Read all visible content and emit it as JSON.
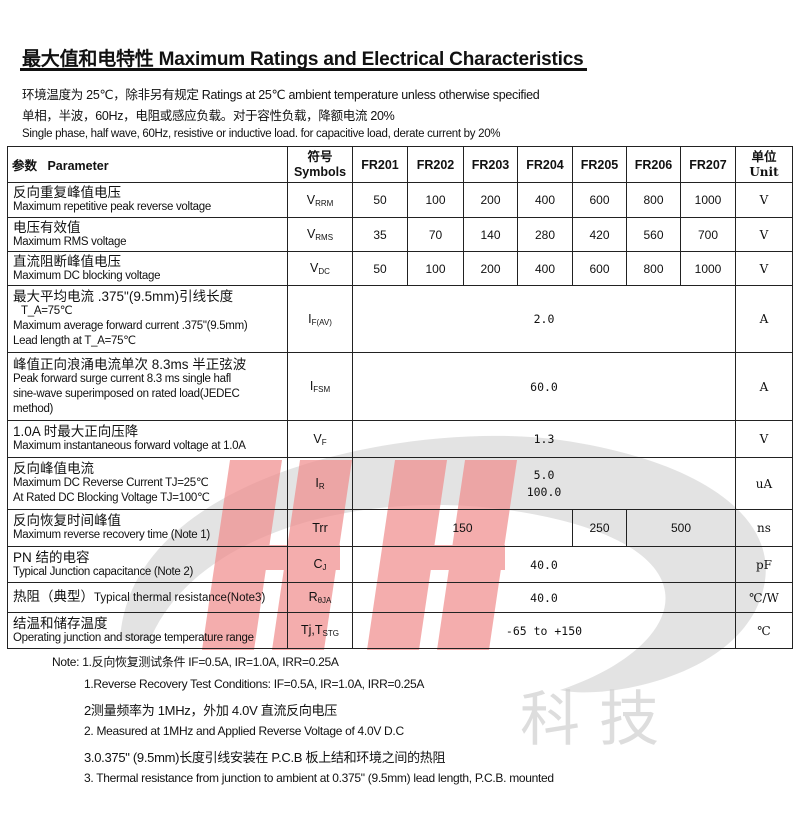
{
  "title": "最大值和电特性 Maximum Ratings and Electrical Characteristics",
  "intro": [
    "环境温度为 25℃，除非另有规定 Ratings at 25℃ ambient temperature unless otherwise specified",
    "单相，半波，60Hz，电阻或感应负载。对于容性负载，降额电流 20%",
    "Single phase, half wave, 60Hz, resistive or inductive load. for capacitive load, derate current by 20%"
  ],
  "table": {
    "header": {
      "param_cn": "参数",
      "param_en": "Parameter",
      "symbol_cn": "符号",
      "symbol_en": "Symbols",
      "parts": [
        "FR201",
        "FR202",
        "FR203",
        "FR204",
        "FR205",
        "FR206",
        "FR207"
      ],
      "unit_cn": "单位",
      "unit_en": "Unit"
    },
    "rows": [
      {
        "cn": "反向重复峰值电压",
        "en": "Maximum repetitive peak reverse voltage",
        "sym": "V",
        "sub": "RRM",
        "values": [
          "50",
          "100",
          "200",
          "400",
          "600",
          "800",
          "1000"
        ],
        "unit": "V"
      },
      {
        "cn": "电压有效值",
        "en": "Maximum RMS voltage",
        "sym": "V",
        "sub": "RMS",
        "values": [
          "35",
          "70",
          "140",
          "280",
          "420",
          "560",
          "700"
        ],
        "unit": "V"
      },
      {
        "cn": "直流阻断峰值电压",
        "en": "Maximum DC blocking voltage",
        "sym": "V",
        "sub": "DC",
        "values": [
          "50",
          "100",
          "200",
          "400",
          "600",
          "800",
          "1000"
        ],
        "unit": "V"
      },
      {
        "lines": [
          "最大平均电流 .375\"(9.5mm)引线长度",
          "T_A=75℃",
          "Maximum average forward current .375\"(9.5mm)",
          "Lead length at T_A=75℃"
        ],
        "sym": "I",
        "sub": "F(AV)",
        "value": "2.0",
        "unit": "A"
      },
      {
        "lines": [
          "峰值正向浪涌电流单次 8.3ms 半正弦波",
          "Peak forward surge current 8.3 ms single hafl",
          "sine-wave superimposed on rated load(JEDEC",
          "method)"
        ],
        "sym": "I",
        "sub": "FSM",
        "value": "60.0",
        "unit": "A"
      },
      {
        "cn": "1.0A 时最大正向压降",
        "en": "Maximum instantaneous forward voltage at 1.0A",
        "sym": "V",
        "sub": "F",
        "value": "1.3",
        "unit": "V"
      },
      {
        "lines": [
          "反向峰值电流",
          "Maximum DC Reverse Current    TJ=25℃",
          "At Rated DC Blocking Voltage      TJ=100℃"
        ],
        "sym": "I",
        "sub": "R",
        "values2": [
          "5.0",
          "100.0"
        ],
        "unit": "uA"
      },
      {
        "cn": "反向恢复时间峰值",
        "en": "Maximum reverse recovery time (Note 1)",
        "sym": "Trr",
        "sub": "",
        "split": [
          "150",
          "250",
          "500"
        ],
        "unit": "ns"
      },
      {
        "cn": "PN 结的电容",
        "en": "Typical Junction capacitance (Note 2)",
        "sym": "C",
        "sub": "J",
        "value": "40.0",
        "unit": "pF"
      },
      {
        "cn": "热阻（典型）",
        "en": "Typical thermal resistance(Note3)",
        "sym": "R",
        "sub": "θJA",
        "value": "40.0",
        "unit": "℃/W"
      },
      {
        "cn": "结温和储存温度",
        "en": "Operating junction and storage temperature range",
        "sym": "Tj,T",
        "sub": "STG",
        "value": "-65 to +150",
        "unit": "℃"
      }
    ]
  },
  "notes": [
    "Note: 1.反向恢复测试条件 IF=0.5A, IR=1.0A, IRR=0.25A",
    "1.Reverse Recovery Test Conditions: IF=0.5A, IR=1.0A, IRR=0.25A",
    "2测量频率为 1MHz，外加 4.0V 直流反向电压",
    "2. Measured at 1MHz and Applied Reverse Voltage of 4.0V D.C",
    "3.0.375\" (9.5mm)长度引线安装在 P.C.B 板上结和环境之间的热阻",
    "3. Thermal resistance from junction to ambient at 0.375\" (9.5mm) lead length, P.C.B. mounted"
  ],
  "watermark": {
    "text": "HH 科技",
    "colors": {
      "red": "#f0a0a0",
      "gray": "#d8d8d8"
    }
  }
}
